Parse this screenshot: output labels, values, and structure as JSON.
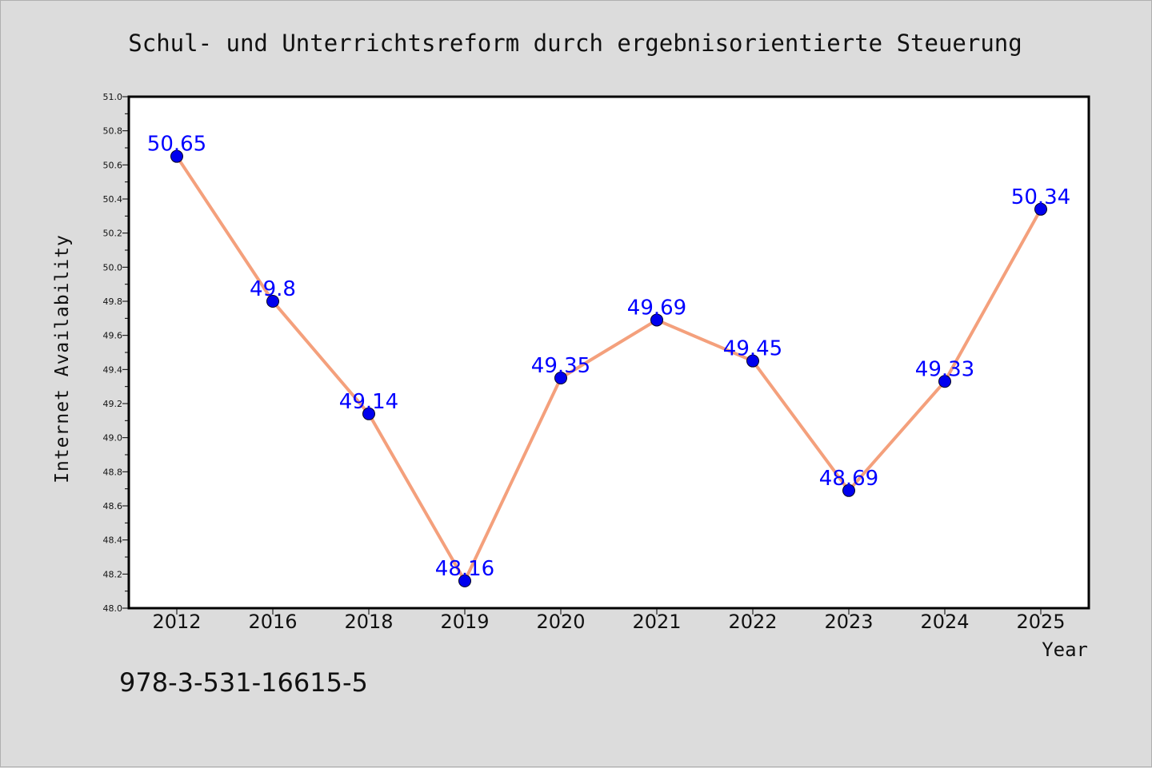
{
  "chart_data": {
    "type": "line",
    "title": "Schul- und Unterrichtsreform durch ergebnisorientierte Steuerung",
    "xlabel": "Year",
    "ylabel": "Internet Availability",
    "categories": [
      "2012",
      "2016",
      "2018",
      "2019",
      "2020",
      "2021",
      "2022",
      "2023",
      "2024",
      "2025"
    ],
    "series": [
      {
        "values": [
          50.65,
          49.8,
          49.14,
          48.16,
          49.35,
          49.69,
          49.45,
          48.69,
          49.33,
          50.34
        ],
        "labels": [
          "50.65",
          "49.8",
          "49.14",
          "48.16",
          "49.35",
          "49.69",
          "49.45",
          "48.69",
          "49.33",
          "50.34"
        ],
        "line_color": "#f4a07c",
        "marker_color": "#0000ee"
      }
    ],
    "ylim": [
      48.0,
      51.0
    ],
    "yticks": [
      "48.0",
      "48.2",
      "48.4",
      "48.6",
      "48.8",
      "49.0",
      "49.2",
      "49.4",
      "49.6",
      "49.8",
      "50.0",
      "50.2",
      "50.4",
      "50.6",
      "50.8",
      "51.0"
    ],
    "grid": false,
    "legend": "none",
    "footer_text": "978-3-531-16615-5",
    "colors": {
      "background": "#dcdcdc",
      "plot_background": "#ffffff",
      "label": "#0000ff"
    }
  }
}
